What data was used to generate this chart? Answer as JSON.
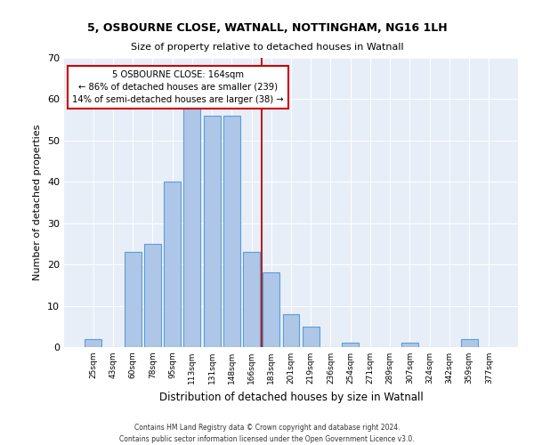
{
  "title1": "5, OSBOURNE CLOSE, WATNALL, NOTTINGHAM, NG16 1LH",
  "title2": "Size of property relative to detached houses in Watnall",
  "xlabel": "Distribution of detached houses by size in Watnall",
  "ylabel": "Number of detached properties",
  "categories": [
    "25sqm",
    "43sqm",
    "60sqm",
    "78sqm",
    "95sqm",
    "113sqm",
    "131sqm",
    "148sqm",
    "166sqm",
    "183sqm",
    "201sqm",
    "219sqm",
    "236sqm",
    "254sqm",
    "271sqm",
    "289sqm",
    "307sqm",
    "324sqm",
    "342sqm",
    "359sqm",
    "377sqm"
  ],
  "values": [
    2,
    0,
    23,
    25,
    40,
    58,
    56,
    56,
    23,
    18,
    8,
    5,
    0,
    1,
    0,
    0,
    1,
    0,
    0,
    2,
    0
  ],
  "bar_color": "#aec6e8",
  "bar_edge_color": "#5a9fd4",
  "property_label": "5 OSBOURNE CLOSE: 164sqm",
  "annotation_line1": "← 86% of detached houses are smaller (239)",
  "annotation_line2": "14% of semi-detached houses are larger (38) →",
  "vline_color": "#b22222",
  "vline_position": 8.5,
  "annotation_box_color": "#ffffff",
  "annotation_box_edge": "#cc0000",
  "ylim": [
    0,
    70
  ],
  "yticks": [
    0,
    10,
    20,
    30,
    40,
    50,
    60,
    70
  ],
  "background_color": "#e8eef8",
  "footer1": "Contains HM Land Registry data © Crown copyright and database right 2024.",
  "footer2": "Contains public sector information licensed under the Open Government Licence v3.0."
}
